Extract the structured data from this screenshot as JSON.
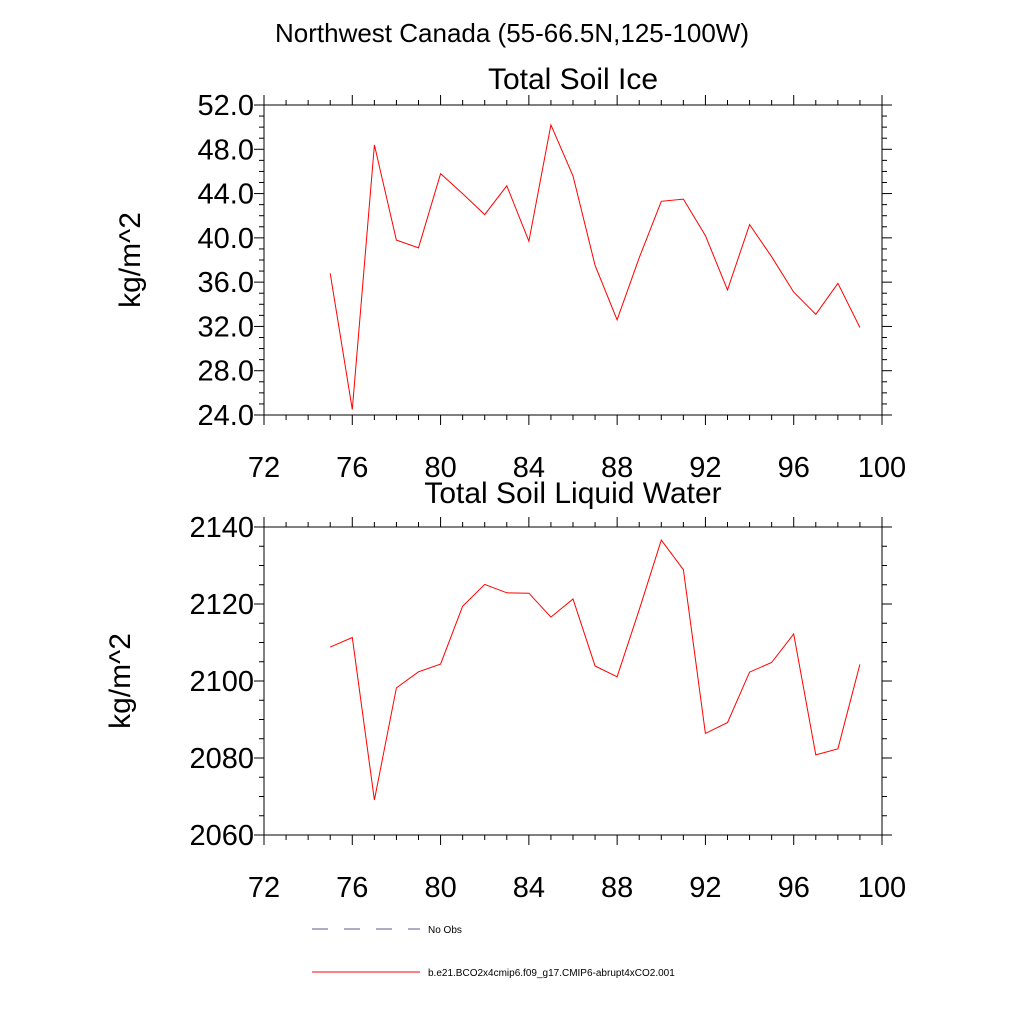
{
  "figure": {
    "title": "Northwest Canada (55-66.5N,125-100W)"
  },
  "chart_data": [
    {
      "type": "line",
      "title": "Total Soil Ice",
      "xlabel": "",
      "ylabel": "kg/m^2",
      "xlim": [
        72,
        100
      ],
      "ylim": [
        24,
        52
      ],
      "xticks": [
        72,
        76,
        80,
        84,
        88,
        92,
        96,
        100
      ],
      "xtick_labels": [
        "72",
        "76",
        "80",
        "84",
        "88",
        "92",
        "96",
        "100"
      ],
      "yticks": [
        24,
        28,
        32,
        36,
        40,
        44,
        48,
        52
      ],
      "ytick_labels": [
        "24.0",
        "28.0",
        "32.0",
        "36.0",
        "40.0",
        "44.0",
        "48.0",
        "52.0"
      ],
      "grid": false,
      "series": [
        {
          "name": "b.e21.BCO2x4cmip6.f09_g17.CMIP6-abrupt4xCO2.001",
          "color": "#ff0000",
          "x": [
            75,
            76,
            77,
            78,
            79,
            80,
            81,
            82,
            83,
            84,
            85,
            86,
            87,
            88,
            89,
            90,
            91,
            92,
            93,
            94,
            95,
            96,
            97,
            98,
            99
          ],
          "values": [
            36.8,
            24.5,
            48.4,
            39.8,
            39.1,
            45.8,
            44.0,
            42.1,
            44.7,
            39.7,
            50.2,
            45.6,
            37.5,
            32.6,
            38.2,
            43.3,
            43.5,
            40.2,
            35.3,
            41.2,
            38.3,
            35.1,
            33.1,
            35.9,
            31.9
          ]
        }
      ]
    },
    {
      "type": "line",
      "title": "Total Soil Liquid Water",
      "xlabel": "",
      "ylabel": "kg/m^2",
      "xlim": [
        72,
        100
      ],
      "ylim": [
        2060,
        2140
      ],
      "xticks": [
        72,
        76,
        80,
        84,
        88,
        92,
        96,
        100
      ],
      "xtick_labels": [
        "72",
        "76",
        "80",
        "84",
        "88",
        "92",
        "96",
        "100"
      ],
      "yticks": [
        2060,
        2080,
        2100,
        2120,
        2140
      ],
      "ytick_labels": [
        "2060",
        "2080",
        "2100",
        "2120",
        "2140"
      ],
      "grid": false,
      "series": [
        {
          "name": "b.e21.BCO2x4cmip6.f09_g17.CMIP6-abrupt4xCO2.001",
          "color": "#ff0000",
          "x": [
            75,
            76,
            77,
            78,
            79,
            80,
            81,
            82,
            83,
            84,
            85,
            86,
            87,
            88,
            89,
            90,
            91,
            92,
            93,
            94,
            95,
            96,
            97,
            98,
            99
          ],
          "values": [
            2108.8,
            2111.3,
            2069.1,
            2098.2,
            2102.4,
            2104.4,
            2119.4,
            2125.1,
            2122.9,
            2122.8,
            2116.6,
            2121.3,
            2103.9,
            2101.1,
            2118.5,
            2136.6,
            2128.9,
            2086.4,
            2089.2,
            2102.3,
            2104.8,
            2112.2,
            2080.8,
            2082.4,
            2104.3
          ]
        }
      ]
    }
  ],
  "legend": {
    "placement": "bottom-left",
    "entries": [
      {
        "label": "No Obs",
        "color": "#5a5f8a",
        "style": "dashed"
      },
      {
        "label": "b.e21.BCO2x4cmip6.f09_g17.CMIP6-abrupt4xCO2.001",
        "color": "#ff0000",
        "style": "solid"
      }
    ]
  }
}
